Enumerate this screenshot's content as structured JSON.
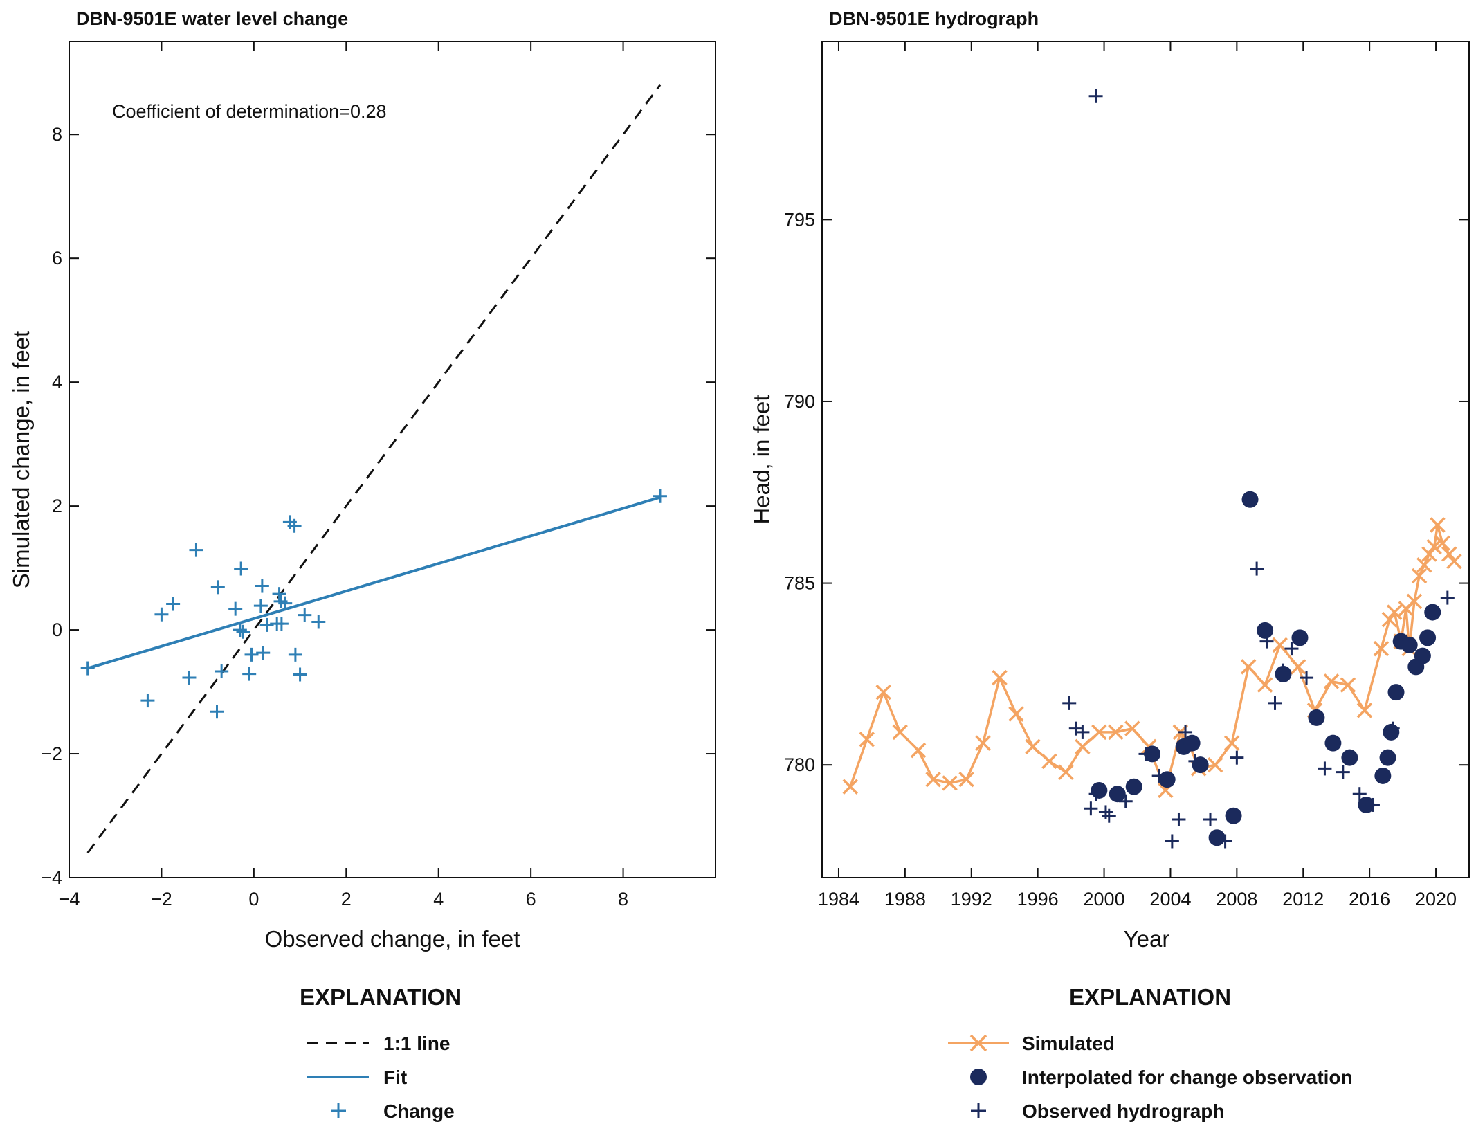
{
  "chart_data": [
    {
      "type": "scatter",
      "title": "DBN-9501E water level change",
      "xlabel": "Observed change, in feet",
      "ylabel": "Simulated change, in feet",
      "xlim": [
        -4,
        10
      ],
      "ylim": [
        -4,
        9.5
      ],
      "xticks": [
        -4,
        -2,
        0,
        2,
        4,
        6,
        8
      ],
      "yticks": [
        -4,
        -2,
        0,
        2,
        4,
        6,
        8
      ],
      "annotation": "Coefficient of determination=0.28",
      "colors": {
        "change": "#2e7fb5",
        "fit": "#2e7fb5",
        "oneToOne": "#111111"
      },
      "series": [
        {
          "name": "1:1 line",
          "kind": "dashed-line",
          "points": [
            [
              -3.6,
              -3.6
            ],
            [
              8.8,
              8.8
            ]
          ]
        },
        {
          "name": "Fit",
          "kind": "line",
          "points": [
            [
              -3.6,
              -0.62
            ],
            [
              8.8,
              2.14
            ]
          ]
        },
        {
          "name": "Change",
          "kind": "plus",
          "points": [
            [
              -3.6,
              -0.62
            ],
            [
              -2.3,
              -1.14
            ],
            [
              -2.0,
              0.25
            ],
            [
              -1.75,
              0.42
            ],
            [
              -1.4,
              -0.77
            ],
            [
              -1.25,
              1.29
            ],
            [
              -0.78,
              0.69
            ],
            [
              -0.8,
              -1.32
            ],
            [
              -0.7,
              -0.67
            ],
            [
              -0.4,
              0.34
            ],
            [
              -0.3,
              0.0
            ],
            [
              -0.28,
              0.99
            ],
            [
              -0.23,
              -0.03
            ],
            [
              -0.05,
              -0.4
            ],
            [
              -0.1,
              -0.71
            ],
            [
              0.15,
              0.39
            ],
            [
              0.18,
              0.71
            ],
            [
              0.2,
              -0.37
            ],
            [
              0.28,
              0.08
            ],
            [
              0.5,
              0.1
            ],
            [
              0.55,
              0.58
            ],
            [
              0.58,
              0.46
            ],
            [
              0.6,
              0.1
            ],
            [
              0.68,
              0.43
            ],
            [
              0.78,
              1.74
            ],
            [
              0.88,
              1.68
            ],
            [
              0.9,
              -0.4
            ],
            [
              1.0,
              -0.72
            ],
            [
              1.1,
              0.24
            ],
            [
              1.4,
              0.13
            ],
            [
              8.8,
              2.16
            ]
          ]
        }
      ]
    },
    {
      "type": "line",
      "title": "DBN-9501E hydrograph",
      "xlabel": "Year",
      "ylabel": "Head, in feet",
      "xlim": [
        1983,
        2022
      ],
      "ylim": [
        776.9,
        799.9
      ],
      "xticks": [
        1984,
        1988,
        1992,
        1996,
        2000,
        2004,
        2008,
        2012,
        2016,
        2020
      ],
      "yticks": [
        780,
        785,
        790,
        795
      ],
      "colors": {
        "simulated": "#f4a462",
        "interpolated": "#1b2a5c",
        "observed": "#1b2a5c"
      },
      "series": [
        {
          "name": "Simulated",
          "kind": "line-x",
          "points": [
            [
              1984.7,
              779.4
            ],
            [
              1985.7,
              780.7
            ],
            [
              1986.7,
              782.0
            ],
            [
              1987.7,
              780.9
            ],
            [
              1988.8,
              780.4
            ],
            [
              1989.7,
              779.6
            ],
            [
              1990.7,
              779.5
            ],
            [
              1991.7,
              779.6
            ],
            [
              1992.7,
              780.6
            ],
            [
              1993.7,
              782.4
            ],
            [
              1994.7,
              781.4
            ],
            [
              1995.7,
              780.5
            ],
            [
              1996.7,
              780.1
            ],
            [
              1997.7,
              779.8
            ],
            [
              1998.7,
              780.5
            ],
            [
              1999.7,
              780.9
            ],
            [
              2000.7,
              780.9
            ],
            [
              2001.7,
              781.0
            ],
            [
              2002.7,
              780.5
            ],
            [
              2003.7,
              779.3
            ],
            [
              2004.6,
              780.9
            ],
            [
              2005.1,
              780.6
            ],
            [
              2005.7,
              779.9
            ],
            [
              2006.7,
              780.0
            ],
            [
              2007.7,
              780.6
            ],
            [
              2008.7,
              782.7
            ],
            [
              2009.7,
              782.2
            ],
            [
              2010.6,
              783.3
            ],
            [
              2011.7,
              782.7
            ],
            [
              2012.7,
              781.5
            ],
            [
              2013.7,
              782.3
            ],
            [
              2014.7,
              782.2
            ],
            [
              2015.7,
              781.5
            ],
            [
              2016.7,
              783.2
            ],
            [
              2017.2,
              784.0
            ],
            [
              2017.5,
              784.2
            ],
            [
              2017.9,
              783.4
            ],
            [
              2018.2,
              784.3
            ],
            [
              2018.4,
              783.2
            ],
            [
              2018.7,
              784.5
            ],
            [
              2019.0,
              785.2
            ],
            [
              2019.3,
              785.5
            ],
            [
              2019.6,
              785.8
            ],
            [
              2019.9,
              786.0
            ],
            [
              2020.1,
              786.6
            ],
            [
              2020.4,
              786.1
            ],
            [
              2020.8,
              785.8
            ],
            [
              2021.1,
              785.6
            ]
          ]
        },
        {
          "name": "Interpolated for change observation",
          "kind": "dot",
          "points": [
            [
              1999.7,
              779.3
            ],
            [
              2000.8,
              779.2
            ],
            [
              2001.8,
              779.4
            ],
            [
              2002.9,
              780.3
            ],
            [
              2003.8,
              779.6
            ],
            [
              2004.8,
              780.5
            ],
            [
              2005.3,
              780.6
            ],
            [
              2005.8,
              780.0
            ],
            [
              2006.8,
              778.0
            ],
            [
              2007.8,
              778.6
            ],
            [
              2008.8,
              787.3
            ],
            [
              2009.7,
              783.7
            ],
            [
              2010.8,
              782.5
            ],
            [
              2011.8,
              783.5
            ],
            [
              2012.8,
              781.3
            ],
            [
              2013.8,
              780.6
            ],
            [
              2014.8,
              780.2
            ],
            [
              2015.8,
              778.9
            ],
            [
              2016.8,
              779.7
            ],
            [
              2017.1,
              780.2
            ],
            [
              2017.3,
              780.9
            ],
            [
              2017.6,
              782.0
            ],
            [
              2017.9,
              783.4
            ],
            [
              2018.4,
              783.3
            ],
            [
              2018.8,
              782.7
            ],
            [
              2019.2,
              783.0
            ],
            [
              2019.5,
              783.5
            ],
            [
              2019.8,
              784.2
            ]
          ]
        },
        {
          "name": "Observed hydrograph",
          "kind": "plus",
          "points": [
            [
              1997.9,
              781.7
            ],
            [
              1998.3,
              781.0
            ],
            [
              1998.7,
              780.9
            ],
            [
              1999.2,
              778.8
            ],
            [
              1999.5,
              779.2
            ],
            [
              1999.5,
              798.4
            ],
            [
              2000.1,
              778.7
            ],
            [
              2000.3,
              778.6
            ],
            [
              2001.3,
              779.0
            ],
            [
              2002.5,
              780.3
            ],
            [
              2003.3,
              779.7
            ],
            [
              2004.1,
              777.9
            ],
            [
              2004.5,
              778.5
            ],
            [
              2004.9,
              780.9
            ],
            [
              2005.5,
              780.1
            ],
            [
              2006.4,
              778.5
            ],
            [
              2007.3,
              777.9
            ],
            [
              2008.0,
              780.2
            ],
            [
              2009.2,
              785.4
            ],
            [
              2009.8,
              783.4
            ],
            [
              2010.3,
              781.7
            ],
            [
              2010.8,
              782.6
            ],
            [
              2011.3,
              783.2
            ],
            [
              2012.2,
              782.4
            ],
            [
              2013.3,
              779.9
            ],
            [
              2014.4,
              779.8
            ],
            [
              2015.4,
              779.2
            ],
            [
              2016.2,
              778.9
            ],
            [
              2017.4,
              781.0
            ],
            [
              2020.7,
              784.6
            ]
          ]
        }
      ]
    }
  ],
  "legends": {
    "left": {
      "heading": "EXPLANATION",
      "items": [
        "1:1 line",
        "Fit",
        "Change"
      ]
    },
    "right": {
      "heading": "EXPLANATION",
      "items": [
        "Simulated",
        "Interpolated for change observation",
        "Observed hydrograph"
      ]
    }
  }
}
